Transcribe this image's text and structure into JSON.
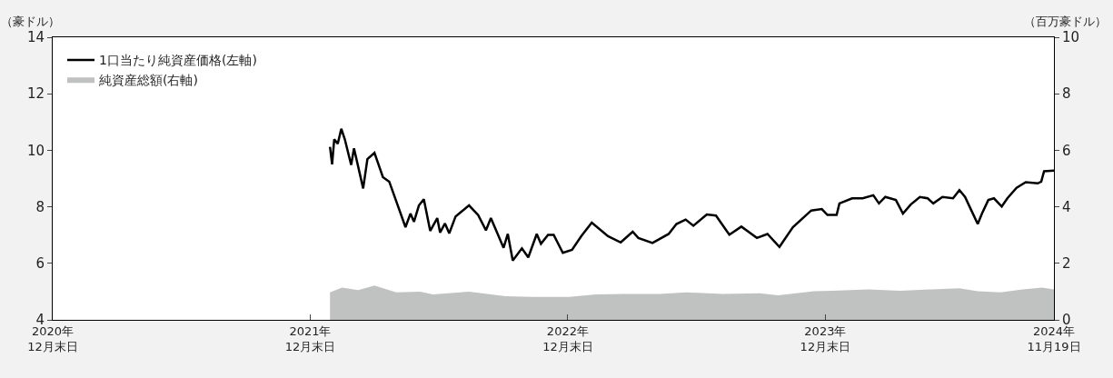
{
  "chart_data": {
    "type": "line",
    "ylabel": "（豪ドル）",
    "y2label": "（百万豪ドル）",
    "xlim": [
      "2020-12-31",
      "2024-11-19"
    ],
    "xticks": [
      {
        "value": "2020-12-31",
        "label": "2020年\n12月末日"
      },
      {
        "value": "2021-12-31",
        "label": "2021年\n12月末日"
      },
      {
        "value": "2022-12-31",
        "label": "2022年\n12月末日"
      },
      {
        "value": "2023-12-31",
        "label": "2023年\n12月末日"
      },
      {
        "value": "2024-11-19",
        "label": "2024年\n11月19日"
      }
    ],
    "ylim": [
      4,
      14
    ],
    "yticks": [
      4,
      6,
      8,
      10,
      12,
      14
    ],
    "y2lim": [
      0,
      10
    ],
    "y2ticks": [
      0,
      2,
      4,
      6,
      8,
      10
    ],
    "legend": "top left",
    "grid": false,
    "series": [
      {
        "name": "1口当たり純資産価格(左軸)",
        "color": "#000000",
        "line_style": "solid",
        "x": [
          "2022-01-28",
          "2022-01-31",
          "2022-02-03",
          "2022-02-08",
          "2022-02-13",
          "2022-02-18",
          "2022-02-27",
          "2022-03-03",
          "2022-03-16",
          "2022-03-22",
          "2022-04-01",
          "2022-04-13",
          "2022-04-22",
          "2022-05-15",
          "2022-05-22",
          "2022-05-27",
          "2022-06-03",
          "2022-06-10",
          "2022-06-19",
          "2022-06-29",
          "2022-07-03",
          "2022-07-10",
          "2022-07-16",
          "2022-07-25",
          "2022-08-13",
          "2022-08-26",
          "2022-09-06",
          "2022-09-13",
          "2022-10-01",
          "2022-10-07",
          "2022-10-14",
          "2022-10-27",
          "2022-11-05",
          "2022-11-17",
          "2022-11-23",
          "2022-12-03",
          "2022-12-11",
          "2022-12-24",
          "2023-01-06",
          "2023-01-19",
          "2023-02-03",
          "2023-02-26",
          "2023-03-16",
          "2023-04-02",
          "2023-04-10",
          "2023-04-30",
          "2023-05-23",
          "2023-06-03",
          "2023-06-16",
          "2023-06-27",
          "2023-07-16",
          "2023-07-29",
          "2023-08-17",
          "2023-09-03",
          "2023-09-25",
          "2023-10-10",
          "2023-10-27",
          "2023-11-15",
          "2023-12-11",
          "2023-12-26",
          "2024-01-03",
          "2024-01-16",
          "2024-01-20",
          "2024-02-07",
          "2024-02-22",
          "2024-03-08",
          "2024-03-16",
          "2024-03-25",
          "2024-04-09",
          "2024-04-19",
          "2024-04-30",
          "2024-05-13",
          "2024-05-24",
          "2024-06-01",
          "2024-06-14",
          "2024-06-29",
          "2024-07-08",
          "2024-07-16",
          "2024-07-25",
          "2024-08-03",
          "2024-08-09",
          "2024-08-18",
          "2024-08-26",
          "2024-09-06",
          "2024-09-14",
          "2024-09-27",
          "2024-10-10",
          "2024-10-27",
          "2024-11-01",
          "2024-11-05",
          "2024-11-19"
        ],
        "values": [
          10.12,
          9.5,
          10.39,
          10.23,
          10.76,
          10.39,
          9.48,
          10.07,
          8.65,
          9.69,
          9.91,
          9.05,
          8.89,
          7.28,
          7.76,
          7.47,
          8.05,
          8.27,
          7.15,
          7.6,
          7.09,
          7.41,
          7.06,
          7.66,
          8.05,
          7.71,
          7.17,
          7.6,
          6.55,
          7.04,
          6.1,
          6.53,
          6.21,
          7.04,
          6.69,
          7.01,
          7.01,
          6.37,
          6.48,
          6.96,
          7.44,
          6.96,
          6.74,
          7.12,
          6.9,
          6.72,
          7.04,
          7.39,
          7.55,
          7.33,
          7.73,
          7.69,
          7.01,
          7.3,
          6.9,
          7.04,
          6.58,
          7.28,
          7.87,
          7.92,
          7.71,
          7.71,
          8.12,
          8.3,
          8.3,
          8.41,
          8.12,
          8.35,
          8.24,
          7.76,
          8.08,
          8.35,
          8.3,
          8.12,
          8.35,
          8.3,
          8.59,
          8.35,
          7.87,
          7.39,
          7.76,
          8.24,
          8.3,
          8.01,
          8.3,
          8.67,
          8.87,
          8.83,
          8.89,
          9.26,
          9.28
        ]
      },
      {
        "name": "純資産総額(右軸)",
        "type": "area",
        "axis": "y2",
        "color": "#c0c1c1",
        "x": [
          "2022-01-28",
          "2022-02-14",
          "2022-03-09",
          "2022-04-01",
          "2022-05-02",
          "2022-06-05",
          "2022-06-23",
          "2022-08-13",
          "2022-10-04",
          "2022-11-11",
          "2023-01-02",
          "2023-02-09",
          "2023-03-20",
          "2023-05-10",
          "2023-06-18",
          "2023-08-08",
          "2023-09-29",
          "2023-10-25",
          "2023-12-15",
          "2024-01-10",
          "2024-03-01",
          "2024-04-15",
          "2024-05-30",
          "2024-07-08",
          "2024-08-03",
          "2024-09-04",
          "2024-10-06",
          "2024-11-02",
          "2024-11-19"
        ],
        "values": [
          0.97,
          1.14,
          1.05,
          1.21,
          0.97,
          1.0,
          0.9,
          1.0,
          0.84,
          0.81,
          0.81,
          0.9,
          0.92,
          0.92,
          0.97,
          0.92,
          0.94,
          0.87,
          1.01,
          1.03,
          1.08,
          1.03,
          1.08,
          1.12,
          1.01,
          0.97,
          1.08,
          1.14,
          1.08
        ]
      }
    ]
  }
}
